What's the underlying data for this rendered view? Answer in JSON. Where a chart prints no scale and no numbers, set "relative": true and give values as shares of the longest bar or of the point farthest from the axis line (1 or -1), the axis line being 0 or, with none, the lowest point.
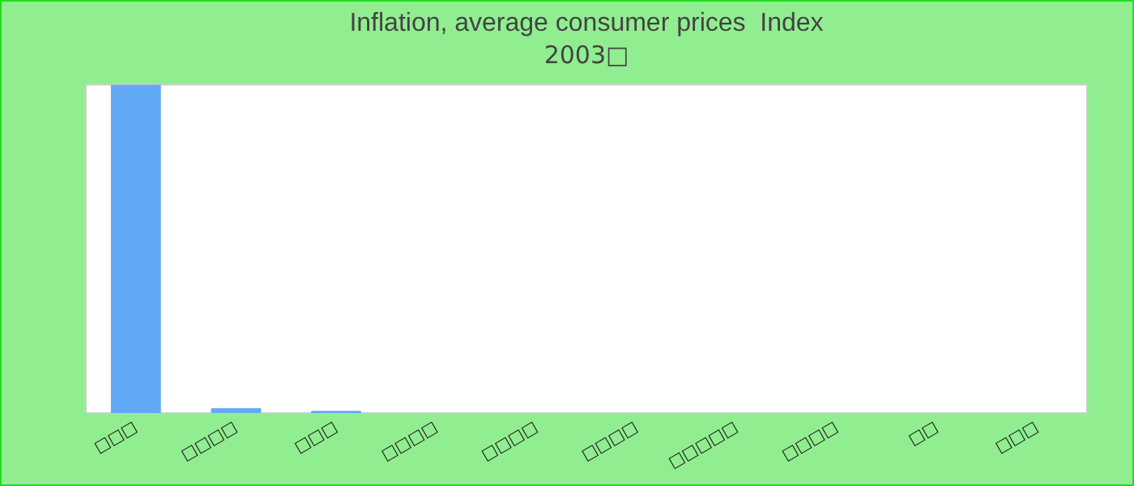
{
  "chart_data": {
    "type": "bar",
    "title": "Inflation, average consumer prices  Index",
    "subtitle": "2003□",
    "categories": [
      "□□□",
      "□□□□",
      "□□□",
      "□□□□",
      "□□□□",
      "□□□□",
      "□□□□□",
      "□□□□",
      "□□",
      "□□□"
    ],
    "values": [
      1,
      0.015,
      0.007,
      0,
      0,
      0,
      0,
      0,
      0,
      0
    ],
    "color": "#62a9f5",
    "relative": true,
    "legend": false
  }
}
